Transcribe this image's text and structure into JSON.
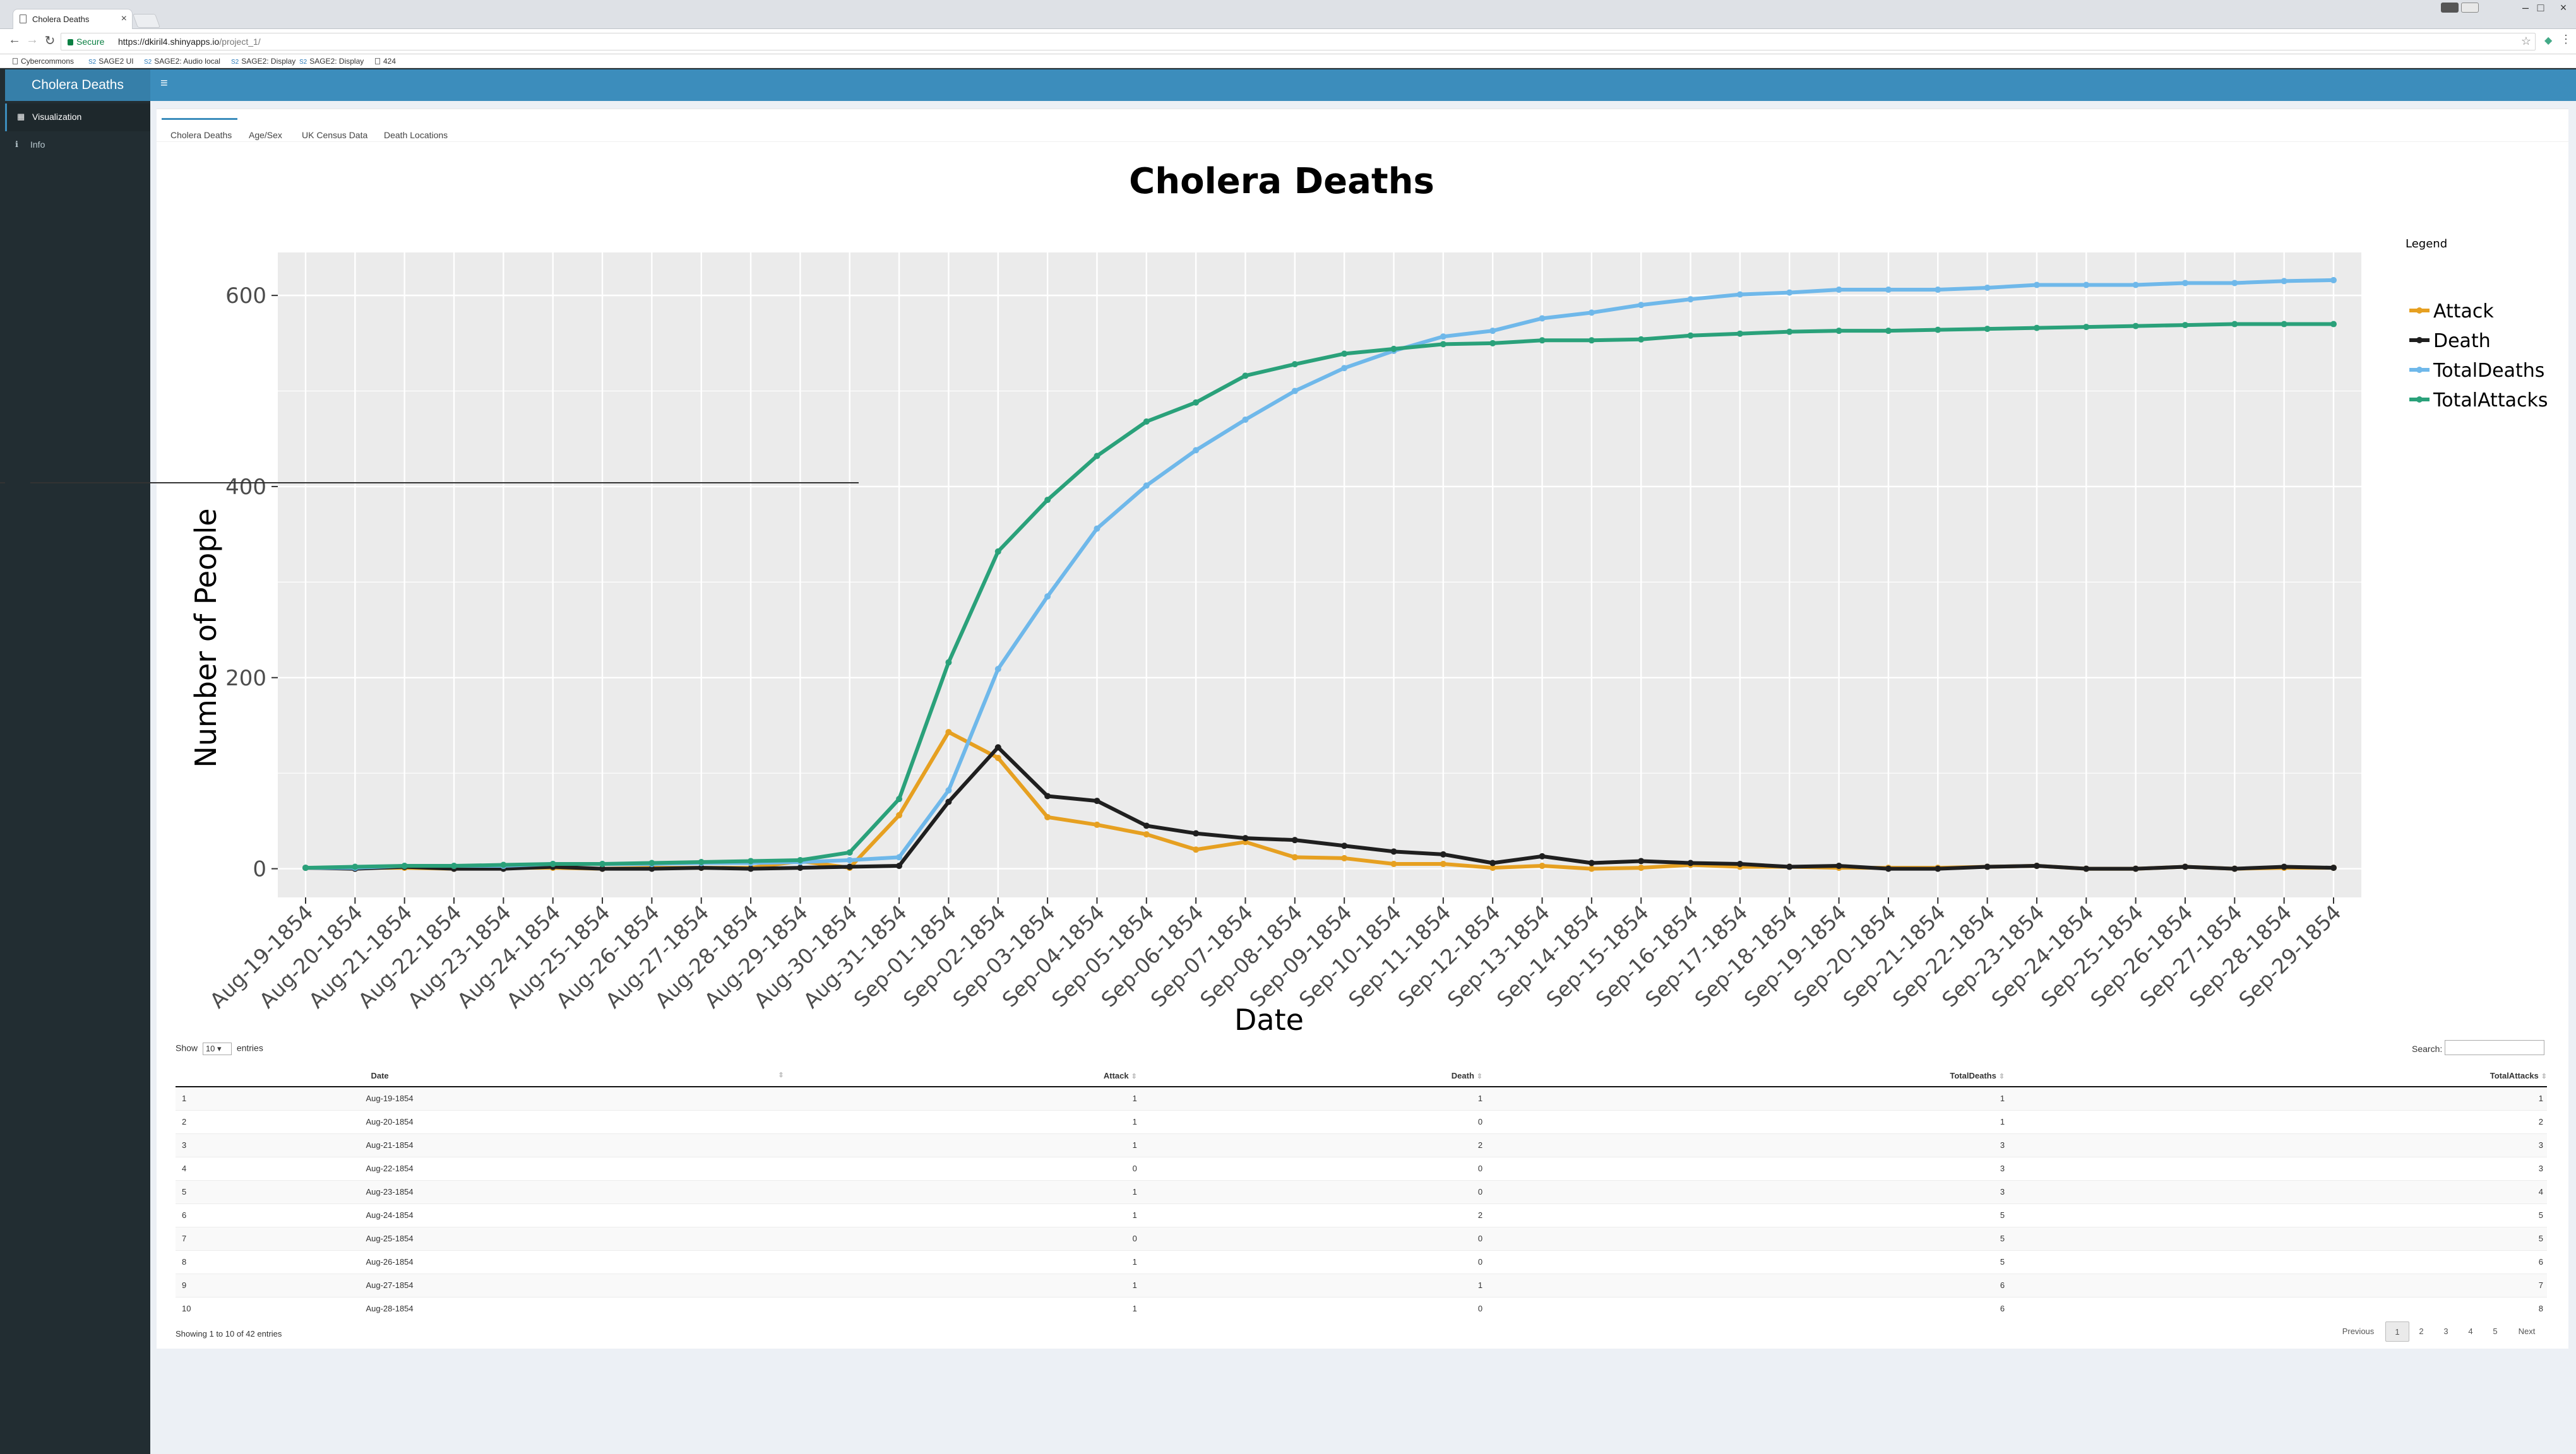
{
  "browser": {
    "tab_title": "Cholera Deaths",
    "secure_label": "Secure",
    "url_host": "https://dkiril4.shinyapps.io",
    "url_path": "/project_1/",
    "bookmarks": [
      "Cybercommons",
      "SAGE2 UI",
      "SAGE2: Audio local",
      "SAGE2: Display",
      "SAGE2: Display",
      "424"
    ]
  },
  "app": {
    "title": "Cholera Deaths",
    "sidebar": [
      {
        "label": "Visualization",
        "icon": "chart-icon"
      },
      {
        "label": "Info",
        "icon": "info-icon"
      }
    ],
    "tabs": [
      "Cholera Deaths",
      "Age/Sex",
      "UK Census Data",
      "Death Locations"
    ]
  },
  "chart_data": {
    "type": "line",
    "title": "Cholera Deaths",
    "xlabel": "Date",
    "ylabel": "Number of People",
    "legend_title": "Legend",
    "legend_position": "right",
    "ylim": [
      -30,
      645
    ],
    "yticks": [
      0,
      200,
      400,
      600
    ],
    "x": [
      "Aug-19-1854",
      "Aug-20-1854",
      "Aug-21-1854",
      "Aug-22-1854",
      "Aug-23-1854",
      "Aug-24-1854",
      "Aug-25-1854",
      "Aug-26-1854",
      "Aug-27-1854",
      "Aug-28-1854",
      "Aug-29-1854",
      "Aug-30-1854",
      "Aug-31-1854",
      "Sep-01-1854",
      "Sep-02-1854",
      "Sep-03-1854",
      "Sep-04-1854",
      "Sep-05-1854",
      "Sep-06-1854",
      "Sep-07-1854",
      "Sep-08-1854",
      "Sep-09-1854",
      "Sep-10-1854",
      "Sep-11-1854",
      "Sep-12-1854",
      "Sep-13-1854",
      "Sep-14-1854",
      "Sep-15-1854",
      "Sep-16-1854",
      "Sep-17-1854",
      "Sep-18-1854",
      "Sep-19-1854",
      "Sep-20-1854",
      "Sep-21-1854",
      "Sep-22-1854",
      "Sep-23-1854",
      "Sep-24-1854",
      "Sep-25-1854",
      "Sep-26-1854",
      "Sep-27-1854",
      "Sep-28-1854",
      "Sep-29-1854"
    ],
    "series": [
      {
        "name": "Attack",
        "color": "#e6a021",
        "values": [
          1,
          1,
          1,
          0,
          1,
          1,
          0,
          1,
          1,
          1,
          8,
          1,
          56,
          143,
          116,
          54,
          46,
          36,
          20,
          28,
          12,
          11,
          5,
          5,
          1,
          3,
          0,
          1,
          4,
          2,
          2,
          1,
          1,
          1,
          2,
          3,
          0,
          0,
          2,
          0,
          1,
          1
        ]
      },
      {
        "name": "Death",
        "color": "#1f1f1f",
        "values": [
          1,
          0,
          2,
          0,
          0,
          2,
          0,
          0,
          1,
          0,
          1,
          2,
          3,
          70,
          127,
          76,
          71,
          45,
          37,
          32,
          30,
          24,
          18,
          15,
          6,
          13,
          6,
          8,
          6,
          5,
          2,
          3,
          0,
          0,
          2,
          3,
          0,
          0,
          2,
          0,
          2,
          1
        ]
      },
      {
        "name": "TotalDeaths",
        "color": "#6fb8ea",
        "values": [
          1,
          1,
          3,
          3,
          3,
          5,
          5,
          5,
          6,
          6,
          7,
          9,
          12,
          82,
          209,
          285,
          356,
          401,
          438,
          470,
          500,
          524,
          542,
          557,
          563,
          576,
          582,
          590,
          596,
          601,
          603,
          606,
          606,
          606,
          608,
          611,
          611,
          611,
          613,
          613,
          615,
          616
        ]
      },
      {
        "name": "TotalAttacks",
        "color": "#2aa17a",
        "values": [
          1,
          2,
          3,
          3,
          4,
          5,
          5,
          6,
          7,
          8,
          9,
          17,
          73,
          216,
          332,
          386,
          432,
          468,
          488,
          516,
          528,
          539,
          544,
          549,
          550,
          553,
          553,
          554,
          558,
          560,
          562,
          563,
          563,
          564,
          565,
          566,
          567,
          568,
          569,
          570,
          570,
          570
        ]
      }
    ]
  },
  "table": {
    "show_label": "Show",
    "entries_label": "entries",
    "page_length": "10",
    "search_label": "Search:",
    "columns": [
      "",
      "Date",
      "Attack",
      "Death",
      "TotalDeaths",
      "TotalAttacks"
    ],
    "rows": [
      [
        "1",
        "Aug-19-1854",
        "1",
        "1",
        "1",
        "1"
      ],
      [
        "2",
        "Aug-20-1854",
        "1",
        "0",
        "1",
        "2"
      ],
      [
        "3",
        "Aug-21-1854",
        "1",
        "2",
        "3",
        "3"
      ],
      [
        "4",
        "Aug-22-1854",
        "0",
        "0",
        "3",
        "3"
      ],
      [
        "5",
        "Aug-23-1854",
        "1",
        "0",
        "3",
        "4"
      ],
      [
        "6",
        "Aug-24-1854",
        "1",
        "2",
        "5",
        "5"
      ],
      [
        "7",
        "Aug-25-1854",
        "0",
        "0",
        "5",
        "5"
      ],
      [
        "8",
        "Aug-26-1854",
        "1",
        "0",
        "5",
        "6"
      ],
      [
        "9",
        "Aug-27-1854",
        "1",
        "1",
        "6",
        "7"
      ],
      [
        "10",
        "Aug-28-1854",
        "1",
        "0",
        "6",
        "8"
      ]
    ],
    "info": "Showing 1 to 10 of 42 entries",
    "pagination": {
      "previous": "Previous",
      "pages": [
        "1",
        "2",
        "3",
        "4",
        "5"
      ],
      "next": "Next",
      "current": "1"
    }
  }
}
